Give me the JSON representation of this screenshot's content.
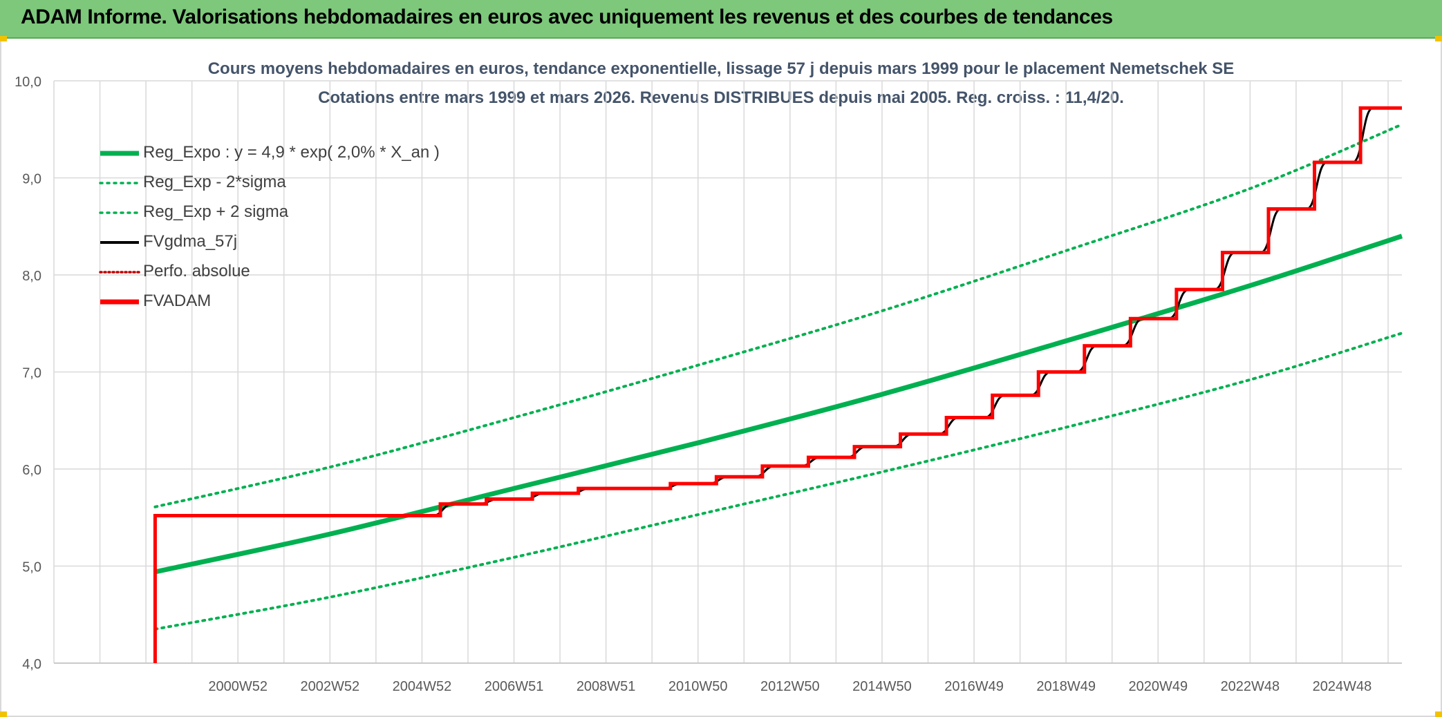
{
  "banner": {
    "title": "ADAM Informe. Valorisations hebdomadaires en euros avec uniquement les revenus et des courbes de tendances"
  },
  "colors": {
    "banner_bg": "#7dc87b",
    "trend_green": "#00b050",
    "fvadam_red": "#ff0000",
    "fvgdma_black": "#000000",
    "perfo_red": "#c00000",
    "title_text": "#44546a",
    "grid": "#d9d9d9"
  },
  "chart_data": {
    "type": "line",
    "title": "Cours moyens hebdomadaires en euros, tendance exponentielle, lissage 57 j depuis mars 1999 pour le placement Nemetschek SE",
    "subtitle": "Cotations entre mars 1999 et mars 2026. Revenus DISTRIBUES depuis mai 2005. Reg. croiss. : 11,4/20.",
    "xlim": [
      1997.0,
      2026.3
    ],
    "ylim": [
      4.0,
      10.0
    ],
    "grid": true,
    "legend_position": "top-left",
    "y_ticks": [
      "4,0",
      "5,0",
      "6,0",
      "7,0",
      "8,0",
      "9,0",
      "10,0"
    ],
    "x_ticks": [
      {
        "label": "2000W52",
        "x": 2001.0
      },
      {
        "label": "2002W52",
        "x": 2003.0
      },
      {
        "label": "2004W52",
        "x": 2005.0
      },
      {
        "label": "2006W51",
        "x": 2007.0
      },
      {
        "label": "2008W51",
        "x": 2009.0
      },
      {
        "label": "2010W50",
        "x": 2011.0
      },
      {
        "label": "2012W50",
        "x": 2013.0
      },
      {
        "label": "2014W50",
        "x": 2015.0
      },
      {
        "label": "2016W49",
        "x": 2017.0
      },
      {
        "label": "2018W49",
        "x": 2019.0
      },
      {
        "label": "2020W49",
        "x": 2021.0
      },
      {
        "label": "2022W48",
        "x": 2023.0
      },
      {
        "label": "2024W48",
        "x": 2025.0
      }
    ],
    "series": [
      {
        "name": "Reg_Expo : y = 4,9 * exp( 2,0% *  X_an )",
        "style": "solid-thick",
        "color": "#00b050",
        "points": [
          [
            1999.2,
            4.94
          ],
          [
            2003.0,
            5.33
          ],
          [
            2007.0,
            5.8
          ],
          [
            2011.0,
            6.27
          ],
          [
            2015.0,
            6.77
          ],
          [
            2019.0,
            7.32
          ],
          [
            2023.0,
            7.89
          ],
          [
            2026.3,
            8.4
          ]
        ]
      },
      {
        "name": "Reg_Exp - 2*sigma",
        "style": "dotted",
        "color": "#00b050",
        "points": [
          [
            1999.2,
            4.35
          ],
          [
            2003.0,
            4.68
          ],
          [
            2007.0,
            5.09
          ],
          [
            2011.0,
            5.53
          ],
          [
            2015.0,
            5.97
          ],
          [
            2019.0,
            6.43
          ],
          [
            2023.0,
            6.92
          ],
          [
            2026.3,
            7.4
          ]
        ]
      },
      {
        "name": "Reg_Exp + 2 sigma",
        "style": "dotted",
        "color": "#00b050",
        "points": [
          [
            1999.2,
            5.61
          ],
          [
            2003.0,
            6.02
          ],
          [
            2007.0,
            6.53
          ],
          [
            2011.0,
            7.07
          ],
          [
            2015.0,
            7.63
          ],
          [
            2019.0,
            8.25
          ],
          [
            2023.0,
            8.89
          ],
          [
            2026.3,
            9.55
          ]
        ]
      },
      {
        "name": "FVgdma_57j",
        "style": "solid",
        "color": "#000000",
        "steps": [
          [
            1999.2,
            5.52
          ],
          [
            2005.45,
            5.64
          ],
          [
            2006.45,
            5.69
          ],
          [
            2007.45,
            5.75
          ],
          [
            2008.45,
            5.8
          ],
          [
            2010.45,
            5.85
          ],
          [
            2011.45,
            5.92
          ],
          [
            2012.45,
            6.03
          ],
          [
            2013.45,
            6.12
          ],
          [
            2014.45,
            6.23
          ],
          [
            2015.45,
            6.36
          ],
          [
            2016.45,
            6.53
          ],
          [
            2017.45,
            6.76
          ],
          [
            2018.45,
            7.0
          ],
          [
            2019.45,
            7.27
          ],
          [
            2020.45,
            7.55
          ],
          [
            2021.45,
            7.85
          ],
          [
            2022.45,
            8.23
          ],
          [
            2023.45,
            8.68
          ],
          [
            2024.45,
            9.16
          ],
          [
            2025.45,
            9.72
          ],
          [
            2026.3,
            9.72
          ]
        ]
      },
      {
        "name": "Perfo. absolue",
        "style": "dotted",
        "color": "#c00000",
        "points": []
      },
      {
        "name": "FVADAM",
        "style": "solid-thick",
        "color": "#ff0000",
        "steps": [
          [
            1999.2,
            4.0
          ],
          [
            1999.2,
            5.52
          ],
          [
            2005.4,
            5.64
          ],
          [
            2006.4,
            5.69
          ],
          [
            2007.4,
            5.75
          ],
          [
            2008.4,
            5.8
          ],
          [
            2010.4,
            5.85
          ],
          [
            2011.4,
            5.92
          ],
          [
            2012.4,
            6.03
          ],
          [
            2013.4,
            6.12
          ],
          [
            2014.4,
            6.23
          ],
          [
            2015.4,
            6.36
          ],
          [
            2016.4,
            6.53
          ],
          [
            2017.4,
            6.76
          ],
          [
            2018.4,
            7.0
          ],
          [
            2019.4,
            7.27
          ],
          [
            2020.4,
            7.55
          ],
          [
            2021.4,
            7.85
          ],
          [
            2022.4,
            8.23
          ],
          [
            2023.4,
            8.68
          ],
          [
            2024.4,
            9.16
          ],
          [
            2025.4,
            9.72
          ],
          [
            2026.3,
            9.72
          ]
        ]
      }
    ]
  }
}
